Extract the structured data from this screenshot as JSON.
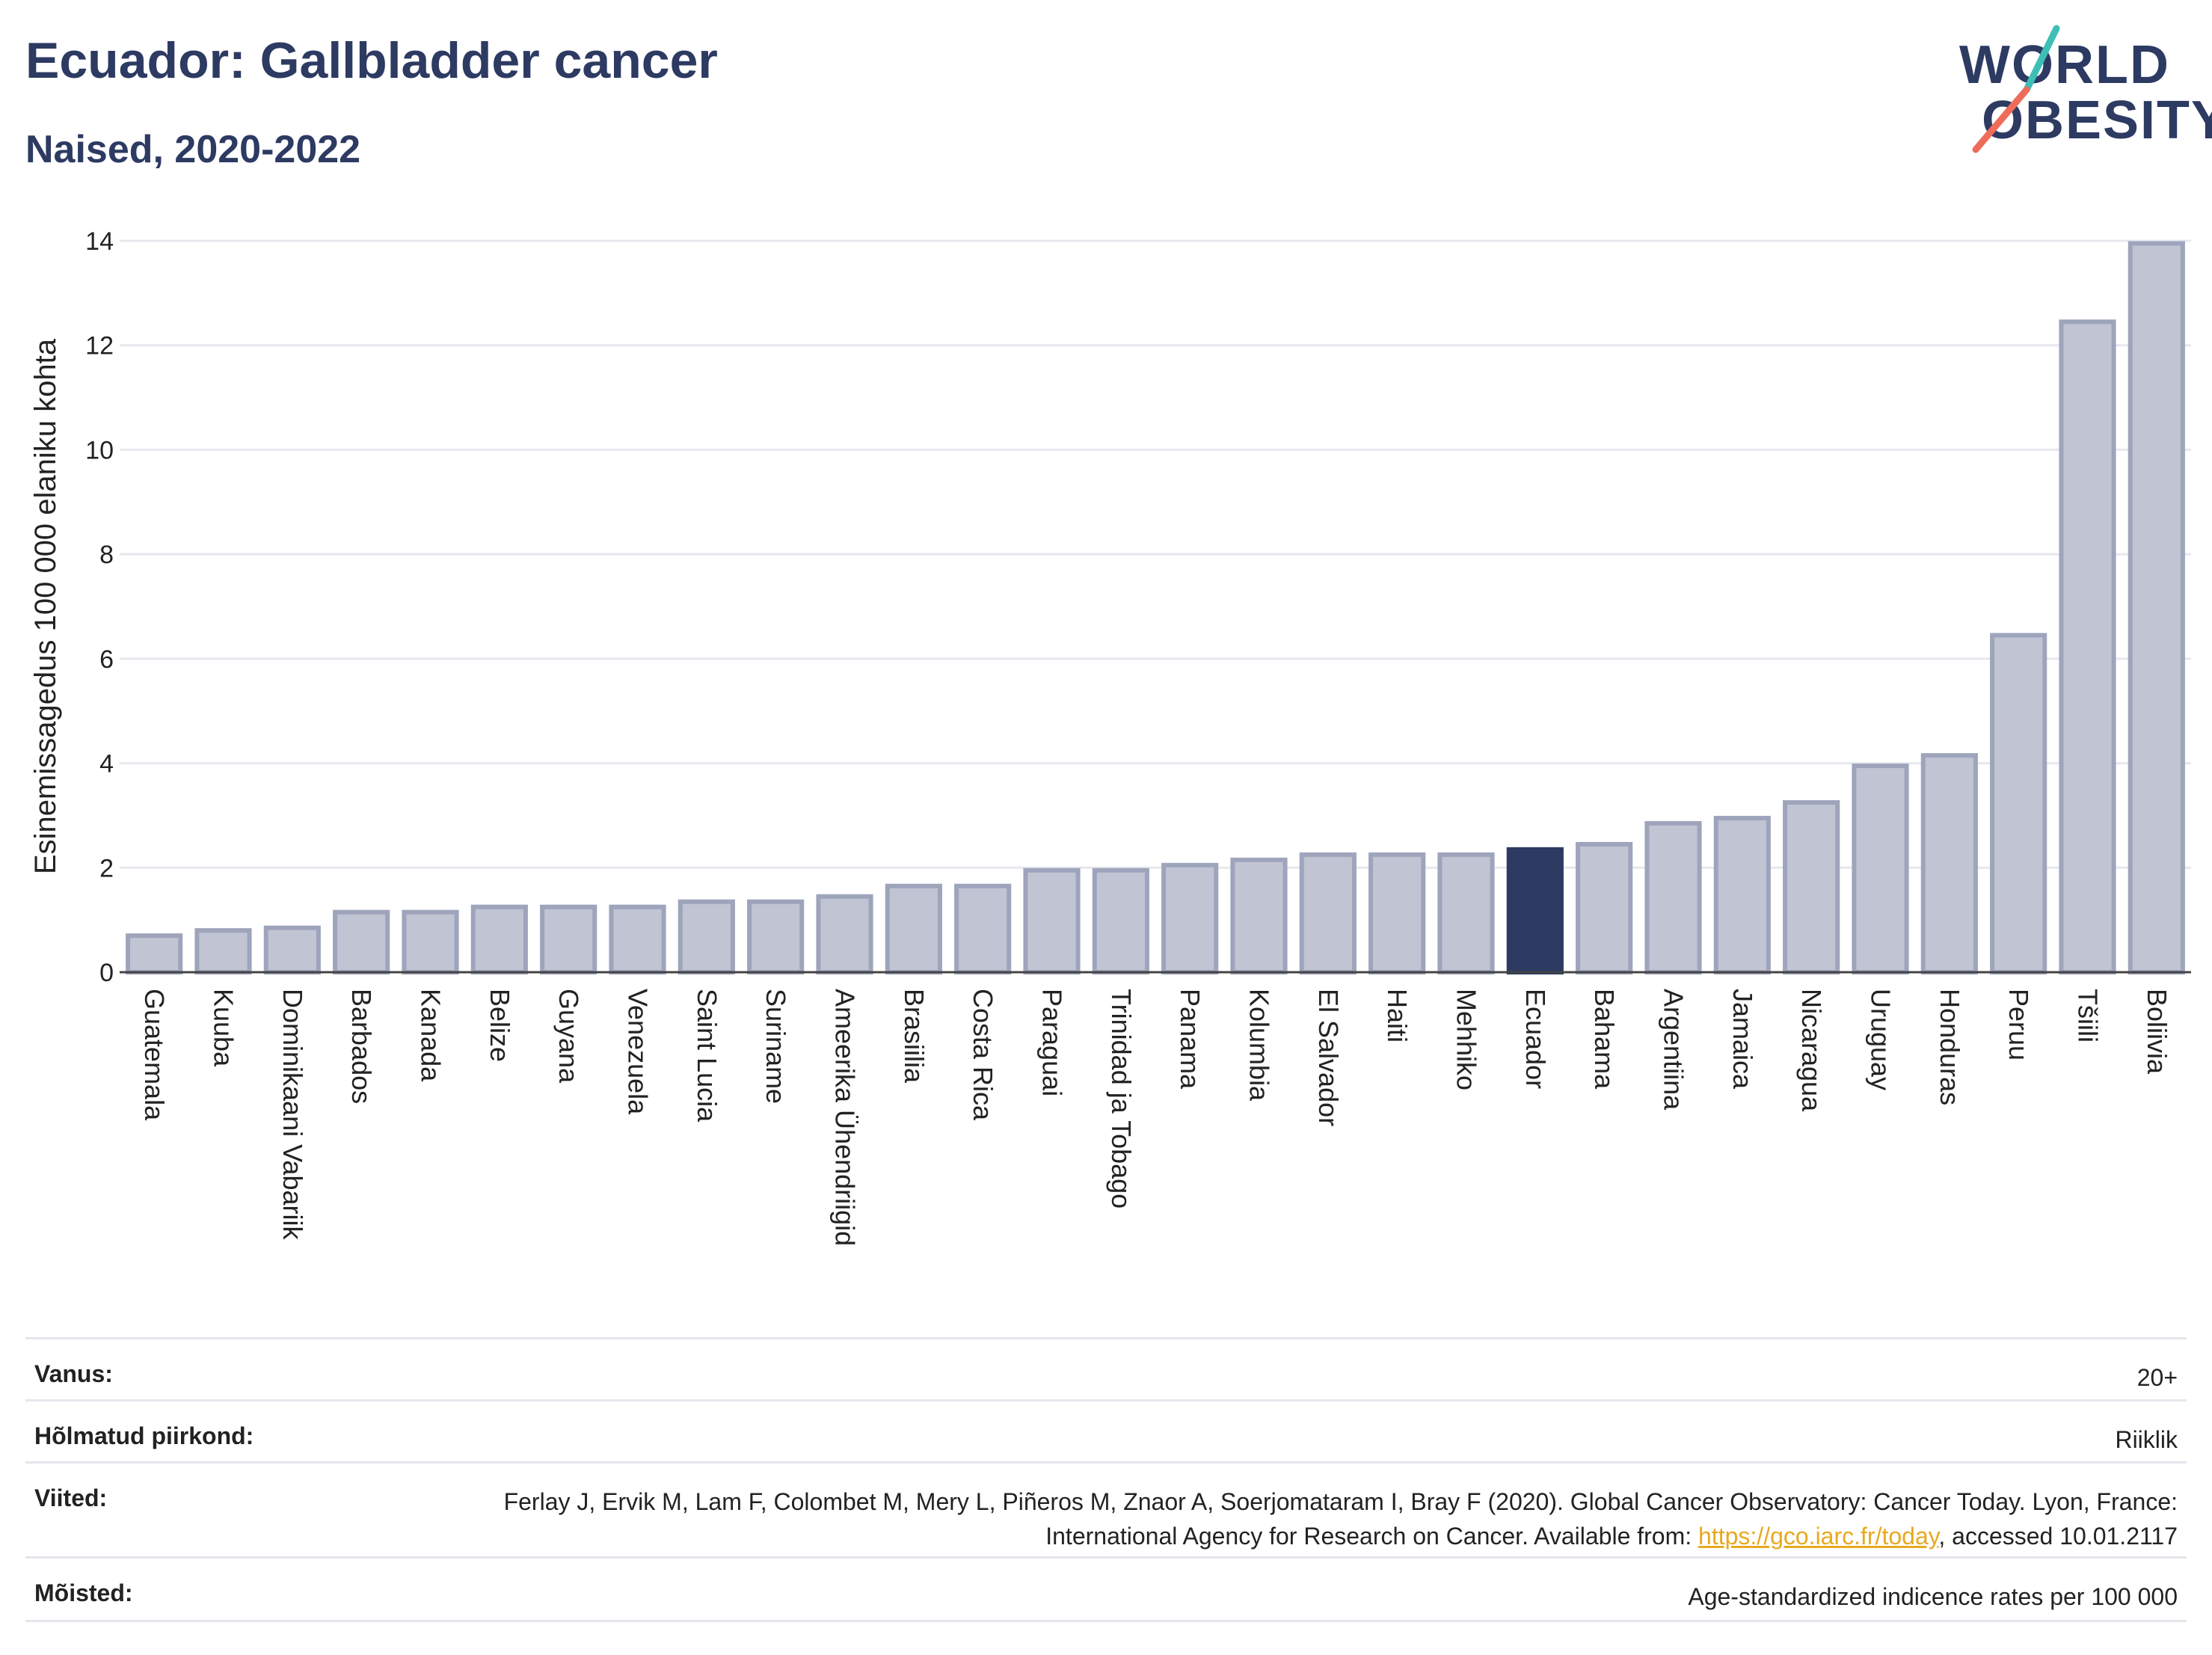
{
  "header": {
    "title": "Ecuador: Gallbladder cancer",
    "subtitle": "Naised, 2020-2022"
  },
  "logo": {
    "line1": "WORLD",
    "line2": "OBESITY",
    "accent_colors": [
      "#3dbfb5",
      "#ef6b5a"
    ]
  },
  "colors": {
    "bar": "#c0c4d3",
    "bar_border": "#9ea4bb",
    "highlight": "#2d3a62",
    "grid": "#e6e8ee",
    "text": "#2d3a62"
  },
  "chart_data": {
    "type": "bar",
    "ylabel": "Esinemissagedus 100 000 elaniku kohta",
    "ylim": [
      0,
      14
    ],
    "yticks": [
      0,
      2,
      4,
      6,
      8,
      10,
      12,
      14
    ],
    "highlight": "Ecuador",
    "categories": [
      "Guatemala",
      "Kuuba",
      "Dominikaani Vabariik",
      "Barbados",
      "Kanada",
      "Belize",
      "Guyana",
      "Venezuela",
      "Saint Lucia",
      "Suriname",
      "Ameerika Ühendriigid",
      "Brasiilia",
      "Costa Rica",
      "Paraguai",
      "Trinidad ja Tobago",
      "Panama",
      "Kolumbia",
      "El Salvador",
      "Haiti",
      "Mehhiko",
      "Ecuador",
      "Bahama",
      "Argentiina",
      "Jamaica",
      "Nicaragua",
      "Uruguay",
      "Honduras",
      "Peruu",
      "Tšiili",
      "Boliivia"
    ],
    "values": [
      0.7,
      0.8,
      0.85,
      1.15,
      1.15,
      1.25,
      1.25,
      1.25,
      1.35,
      1.35,
      1.45,
      1.65,
      1.65,
      1.95,
      1.95,
      2.05,
      2.15,
      2.25,
      2.25,
      2.25,
      2.35,
      2.45,
      2.85,
      2.95,
      3.25,
      3.95,
      4.15,
      6.45,
      12.45,
      13.95
    ]
  },
  "footer": {
    "rows": [
      {
        "label": "Vanus:",
        "value": "20+"
      },
      {
        "label": "Hõlmatud piirkond:",
        "value": "Riiklik"
      },
      {
        "label": "Viited:",
        "value_pre": "Ferlay J, Ervik M, Lam F, Colombet M, Mery L, Piñeros M, Znaor A, Soerjomataram I, Bray F (2020). Global Cancer Observatory: Cancer Today. Lyon, France: International Agency for Research on Cancer. Available from: ",
        "link": "https://gco.iarc.fr/today",
        "value_post": ", accessed 10.01.2117"
      },
      {
        "label": "Mõisted:",
        "value": "Age-standardized indicence rates per 100 000"
      }
    ]
  }
}
